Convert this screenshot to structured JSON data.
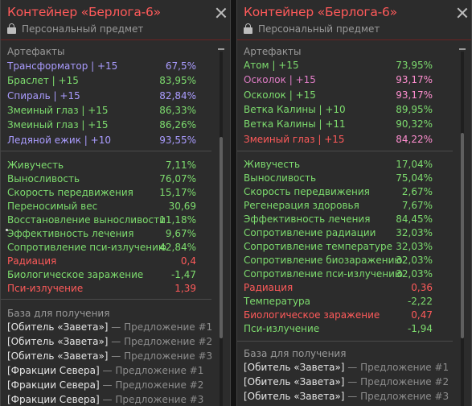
{
  "colors": {
    "red": "#ff5a5a",
    "green": "#7ddc6e",
    "purple": "#aa9cff",
    "pink": "#e07dc6",
    "pink_value": "#ff8fd0",
    "gray": "#9a9a9a",
    "white": "#e6e6e6"
  },
  "left": {
    "title": "Контейнер «Берлога-6»",
    "subtitle": "Персональный предмет",
    "artifacts_header": "Артефакты",
    "artifacts": [
      {
        "name": "Трансформатор | +15",
        "value": "67,5%",
        "color": "purple",
        "vcolor": "purple"
      },
      {
        "name": "Браслет | +15",
        "value": "83,95%",
        "color": "green",
        "vcolor": "green"
      },
      {
        "name": "Спираль | +15",
        "value": "82,84%",
        "color": "purple",
        "vcolor": "purple"
      },
      {
        "name": "Змеиный глаз | +15",
        "value": "86,33%",
        "color": "green",
        "vcolor": "green"
      },
      {
        "name": "Змеиный глаз | +15",
        "value": "86,26%",
        "color": "green",
        "vcolor": "green"
      },
      {
        "name": "Ледяной ежик | +10",
        "value": "93,55%",
        "color": "purple",
        "vcolor": "purple"
      }
    ],
    "stats": [
      {
        "name": "Живучесть",
        "value": "7,11%",
        "color": "green"
      },
      {
        "name": "Выносливость",
        "value": "76,07%",
        "color": "green"
      },
      {
        "name": "Скорость передвижения",
        "value": "15,17%",
        "color": "green"
      },
      {
        "name": "Переносимый вес",
        "value": "30,69",
        "color": "green"
      },
      {
        "name": "Восстановление выносливости",
        "value": "11,18%",
        "color": "green"
      },
      {
        "name": "Эффективность лечения",
        "value": "9,67%",
        "color": "green"
      },
      {
        "name": "Сопротивление пси-излучению",
        "value": "42,84%",
        "color": "green"
      },
      {
        "name": "Радиация",
        "value": "0,4",
        "color": "red"
      },
      {
        "name": "Биологическое заражение",
        "value": "-1,47",
        "color": "green"
      },
      {
        "name": "Пси-излучение",
        "value": "1,39",
        "color": "red"
      }
    ],
    "base_header": "База для получения",
    "base": [
      {
        "name": "[Обитель «Завета»]",
        "offer": "— Предложение #1"
      },
      {
        "name": "[Обитель «Завета»]",
        "offer": "— Предложение #2"
      },
      {
        "name": "[Обитель «Завета»]",
        "offer": "— Предложение #3"
      },
      {
        "name": "[Фракции Севера]",
        "offer": "— Предложение #1"
      },
      {
        "name": "[Фракции Севера]",
        "offer": "— Предложение #2"
      },
      {
        "name": "[Фракции Севера]",
        "offer": "— Предложение #3"
      }
    ]
  },
  "right": {
    "title": "Контейнер «Берлога-6»",
    "subtitle": "Персональный предмет",
    "artifacts_header": "Артефакты",
    "artifacts": [
      {
        "name": "Атом | +15",
        "value": "73,95%",
        "color": "green",
        "vcolor": "green"
      },
      {
        "name": "Осколок | +15",
        "value": "93,17%",
        "color": "pink",
        "vcolor": "pink_value"
      },
      {
        "name": "Осколок | +15",
        "value": "93,17%",
        "color": "green",
        "vcolor": "pink_value"
      },
      {
        "name": "Ветка Калины | +10",
        "value": "89,95%",
        "color": "green",
        "vcolor": "green"
      },
      {
        "name": "Ветка Калины | +11",
        "value": "90,32%",
        "color": "green",
        "vcolor": "green"
      },
      {
        "name": "Змеиный глаз | +15",
        "value": "84,22%",
        "color": "red",
        "vcolor": "pink_value"
      }
    ],
    "stats": [
      {
        "name": "Живучесть",
        "value": "17,04%",
        "color": "green"
      },
      {
        "name": "Выносливость",
        "value": "75,04%",
        "color": "green"
      },
      {
        "name": "Скорость передвижения",
        "value": "2,67%",
        "color": "green"
      },
      {
        "name": "Регенерация здоровья",
        "value": "7,67%",
        "color": "green"
      },
      {
        "name": "Эффективность лечения",
        "value": "84,45%",
        "color": "green"
      },
      {
        "name": "Сопротивление радиации",
        "value": "32,03%",
        "color": "green"
      },
      {
        "name": "Сопротивление температуре",
        "value": "32,03%",
        "color": "green"
      },
      {
        "name": "Сопротивление биозаражению",
        "value": "32,03%",
        "color": "green"
      },
      {
        "name": "Сопротивление пси-излучению",
        "value": "32,03%",
        "color": "green"
      },
      {
        "name": "Радиация",
        "value": "0,36",
        "color": "red"
      },
      {
        "name": "Температура",
        "value": "-2,22",
        "color": "green"
      },
      {
        "name": "Биологическое заражение",
        "value": "0,47",
        "color": "red"
      },
      {
        "name": "Пси-излучение",
        "value": "-1,94",
        "color": "green"
      }
    ],
    "base_header": "База для получения",
    "base": [
      {
        "name": "[Обитель «Завета»]",
        "offer": "— Предложение #1"
      },
      {
        "name": "[Обитель «Завета»]",
        "offer": "— Предложение #2"
      },
      {
        "name": "[Обитель «Завета»]",
        "offer": "— Предложение #3"
      }
    ]
  }
}
